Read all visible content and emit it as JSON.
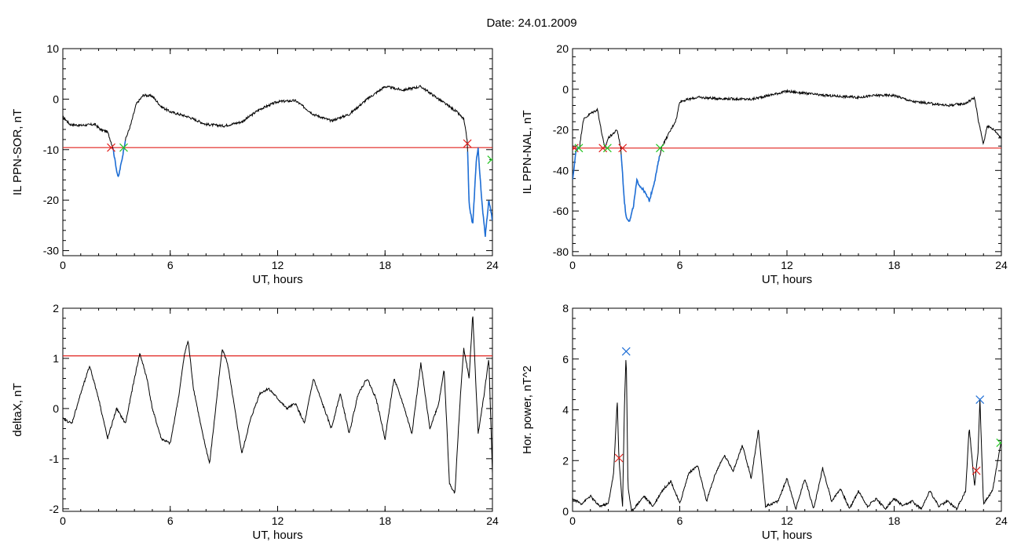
{
  "header": {
    "date_label": "Date:  24.01.2009"
  },
  "colors": {
    "trace": "#000000",
    "threshold": "#e0201c",
    "highlight": "#1f6fd6",
    "start_marker": "#e0201c",
    "end_marker": "#22c522",
    "peak_marker": "#1f6fd6"
  },
  "chart_data": [
    {
      "type": "line",
      "id": "top-left",
      "xlabel": "UT, hours",
      "ylabel": "IL PPN-SOR, nT",
      "xlim": [
        0,
        24
      ],
      "ylim": [
        -31,
        10
      ],
      "xticks": [
        0,
        6,
        12,
        18,
        24
      ],
      "yticks": [
        -30,
        -20,
        -10,
        0,
        10
      ],
      "threshold": -9.6,
      "series": [
        {
          "points": [
            [
              0,
              -3.5
            ],
            [
              0.4,
              -5
            ],
            [
              1,
              -5.2
            ],
            [
              1.8,
              -5
            ],
            [
              2.1,
              -6
            ],
            [
              2.5,
              -6.5
            ],
            [
              2.8,
              -9.6
            ],
            [
              3.0,
              -14
            ],
            [
              3.1,
              -15.6
            ],
            [
              3.3,
              -12
            ],
            [
              3.5,
              -8
            ],
            [
              3.8,
              -5
            ],
            [
              4.1,
              -1
            ],
            [
              4.5,
              0.8
            ],
            [
              5,
              0.6
            ],
            [
              5.5,
              -1.5
            ],
            [
              6,
              -2.5
            ],
            [
              7,
              -3.5
            ],
            [
              8,
              -5
            ],
            [
              9,
              -5.3
            ],
            [
              10,
              -4.5
            ],
            [
              11,
              -2
            ],
            [
              12,
              -0.5
            ],
            [
              13,
              -0.3
            ],
            [
              14,
              -3
            ],
            [
              15,
              -4.3
            ],
            [
              16,
              -3
            ],
            [
              17,
              0
            ],
            [
              18,
              2.5
            ],
            [
              19,
              1.8
            ],
            [
              20,
              2.5
            ],
            [
              21,
              0
            ],
            [
              22,
              -2.5
            ],
            [
              22.4,
              -4
            ],
            [
              22.6,
              -8.5
            ],
            [
              22.7,
              -21
            ],
            [
              22.9,
              -25
            ],
            [
              23.1,
              -12
            ],
            [
              23.2,
              -9.8
            ],
            [
              23.4,
              -20
            ],
            [
              23.6,
              -27
            ],
            [
              23.8,
              -20
            ],
            [
              24,
              -24
            ]
          ]
        }
      ],
      "highlight_segments": [
        [
          2.8,
          3.5
        ],
        [
          22.6,
          24
        ]
      ],
      "start_markers": [
        [
          2.7,
          -9.6
        ],
        [
          22.6,
          -8.8
        ]
      ],
      "end_markers": [
        [
          3.4,
          -9.6
        ],
        [
          23.95,
          -12
        ]
      ]
    },
    {
      "type": "line",
      "id": "top-right",
      "xlabel": "UT, hours",
      "ylabel": "IL PPN-NAL, nT",
      "xlim": [
        0,
        24
      ],
      "ylim": [
        -82,
        20
      ],
      "xticks": [
        0,
        6,
        12,
        18,
        24
      ],
      "yticks": [
        -80,
        -60,
        -40,
        -20,
        0,
        20
      ],
      "threshold": -29,
      "series": [
        {
          "points": [
            [
              0,
              -45
            ],
            [
              0.2,
              -30
            ],
            [
              0.4,
              -28
            ],
            [
              0.6,
              -15
            ],
            [
              1,
              -12
            ],
            [
              1.4,
              -10
            ],
            [
              1.6,
              -20
            ],
            [
              1.8,
              -29
            ],
            [
              2,
              -24
            ],
            [
              2.5,
              -20
            ],
            [
              2.7,
              -29
            ],
            [
              2.9,
              -55
            ],
            [
              3,
              -63
            ],
            [
              3.2,
              -65
            ],
            [
              3.4,
              -58
            ],
            [
              3.6,
              -45
            ],
            [
              3.8,
              -48
            ],
            [
              4,
              -50
            ],
            [
              4.3,
              -55
            ],
            [
              4.6,
              -45
            ],
            [
              4.8,
              -36
            ],
            [
              5,
              -28
            ],
            [
              5.2,
              -25
            ],
            [
              5.5,
              -20
            ],
            [
              5.8,
              -15
            ],
            [
              6,
              -6
            ],
            [
              7,
              -4
            ],
            [
              8,
              -4.5
            ],
            [
              10,
              -5
            ],
            [
              11,
              -3
            ],
            [
              12,
              -1
            ],
            [
              13,
              -2
            ],
            [
              14,
              -3
            ],
            [
              16,
              -4
            ],
            [
              17,
              -3
            ],
            [
              18,
              -3
            ],
            [
              19,
              -6
            ],
            [
              20,
              -7
            ],
            [
              21,
              -8
            ],
            [
              22,
              -7
            ],
            [
              22.5,
              -4
            ],
            [
              22.7,
              -15
            ],
            [
              23,
              -27
            ],
            [
              23.2,
              -18
            ],
            [
              23.6,
              -20
            ],
            [
              24,
              -24
            ]
          ]
        }
      ],
      "highlight_segments": [
        [
          0,
          0.4
        ],
        [
          1.8,
          1.9
        ],
        [
          2.7,
          4.9
        ]
      ],
      "start_markers": [
        [
          0.1,
          -29
        ],
        [
          1.7,
          -29
        ],
        [
          2.8,
          -29
        ]
      ],
      "end_markers": [
        [
          0.35,
          -29
        ],
        [
          1.95,
          -29
        ],
        [
          4.9,
          -29
        ]
      ]
    },
    {
      "type": "line",
      "id": "bottom-left",
      "xlabel": "UT, hours",
      "ylabel": "deltaX, nT",
      "xlim": [
        0,
        24
      ],
      "ylim": [
        -2.05,
        2
      ],
      "xticks": [
        0,
        6,
        12,
        18,
        24
      ],
      "yticks": [
        -2,
        -1,
        0,
        1,
        2
      ],
      "threshold": 1.05,
      "series": [
        {
          "points": [
            [
              0,
              -0.2
            ],
            [
              0.5,
              -0.3
            ],
            [
              1,
              0.3
            ],
            [
              1.5,
              0.85
            ],
            [
              2,
              0.2
            ],
            [
              2.5,
              -0.6
            ],
            [
              3,
              0
            ],
            [
              3.5,
              -0.3
            ],
            [
              4,
              0.6
            ],
            [
              4.3,
              1.1
            ],
            [
              4.7,
              0.6
            ],
            [
              5,
              0
            ],
            [
              5.5,
              -0.6
            ],
            [
              6,
              -0.7
            ],
            [
              6.5,
              0.3
            ],
            [
              6.8,
              1.1
            ],
            [
              7,
              1.35
            ],
            [
              7.3,
              0.4
            ],
            [
              7.8,
              -0.5
            ],
            [
              8.2,
              -1.1
            ],
            [
              8.6,
              0.2
            ],
            [
              8.9,
              1.2
            ],
            [
              9.2,
              0.9
            ],
            [
              9.6,
              0
            ],
            [
              10,
              -0.9
            ],
            [
              10.5,
              -0.2
            ],
            [
              11,
              0.3
            ],
            [
              11.5,
              0.4
            ],
            [
              12,
              0.2
            ],
            [
              12.5,
              0
            ],
            [
              13,
              0.1
            ],
            [
              13.5,
              -0.3
            ],
            [
              14,
              0.6
            ],
            [
              14.5,
              0.1
            ],
            [
              15,
              -0.4
            ],
            [
              15.5,
              0.3
            ],
            [
              16,
              -0.5
            ],
            [
              16.5,
              0.3
            ],
            [
              17,
              0.6
            ],
            [
              17.5,
              0.2
            ],
            [
              18,
              -0.6
            ],
            [
              18.5,
              0.6
            ],
            [
              19,
              0.1
            ],
            [
              19.5,
              -0.5
            ],
            [
              20,
              0.9
            ],
            [
              20.5,
              -0.4
            ],
            [
              21,
              0.1
            ],
            [
              21.3,
              0.8
            ],
            [
              21.6,
              -1.5
            ],
            [
              21.9,
              -1.7
            ],
            [
              22.2,
              0.2
            ],
            [
              22.4,
              1.2
            ],
            [
              22.7,
              0.6
            ],
            [
              22.9,
              1.9
            ],
            [
              23.2,
              -0.5
            ],
            [
              23.5,
              0.2
            ],
            [
              23.8,
              1
            ],
            [
              24,
              -1.3
            ]
          ]
        }
      ]
    },
    {
      "type": "line",
      "id": "bottom-right",
      "xlabel": "UT, hours",
      "ylabel": "Hor. power, nT^2",
      "xlim": [
        0,
        24
      ],
      "ylim": [
        0,
        8
      ],
      "xticks": [
        0,
        6,
        12,
        18,
        24
      ],
      "yticks": [
        0,
        2,
        4,
        6,
        8
      ],
      "series": [
        {
          "points": [
            [
              0,
              0.5
            ],
            [
              0.5,
              0.3
            ],
            [
              1,
              0.6
            ],
            [
              1.5,
              0.2
            ],
            [
              2,
              0.3
            ],
            [
              2.3,
              1.5
            ],
            [
              2.5,
              4.4
            ],
            [
              2.6,
              2
            ],
            [
              2.8,
              0.2
            ],
            [
              2.9,
              4
            ],
            [
              3,
              6.3
            ],
            [
              3.1,
              1
            ],
            [
              3.3,
              0
            ],
            [
              4,
              0.6
            ],
            [
              4.5,
              0.2
            ],
            [
              5,
              0.8
            ],
            [
              5.5,
              1.2
            ],
            [
              6,
              0.3
            ],
            [
              6.5,
              1.5
            ],
            [
              7,
              1.8
            ],
            [
              7.5,
              0.4
            ],
            [
              8,
              1.5
            ],
            [
              8.5,
              2.2
            ],
            [
              9,
              1.6
            ],
            [
              9.5,
              2.6
            ],
            [
              10,
              1.3
            ],
            [
              10.4,
              3.2
            ],
            [
              10.8,
              0.2
            ],
            [
              11.5,
              0.4
            ],
            [
              12,
              1.3
            ],
            [
              12.5,
              0.1
            ],
            [
              13,
              1.3
            ],
            [
              13.5,
              0.1
            ],
            [
              14,
              1.7
            ],
            [
              14.5,
              0.4
            ],
            [
              15,
              0.9
            ],
            [
              15.5,
              0.1
            ],
            [
              16,
              0.8
            ],
            [
              16.5,
              0.2
            ],
            [
              17,
              0.5
            ],
            [
              17.5,
              0.1
            ],
            [
              18,
              0.5
            ],
            [
              18.5,
              0.2
            ],
            [
              19,
              0.4
            ],
            [
              19.5,
              0.1
            ],
            [
              20,
              0.8
            ],
            [
              20.5,
              0.2
            ],
            [
              21,
              0.4
            ],
            [
              21.5,
              0.1
            ],
            [
              22,
              0.8
            ],
            [
              22.2,
              3.3
            ],
            [
              22.5,
              1
            ],
            [
              22.7,
              2.4
            ],
            [
              22.8,
              4.4
            ],
            [
              23,
              0.3
            ],
            [
              23.5,
              0.8
            ],
            [
              24,
              2.8
            ]
          ]
        }
      ],
      "peak_markers": [
        [
          3.0,
          6.3
        ],
        [
          22.8,
          4.4
        ]
      ],
      "start_markers": [
        [
          2.6,
          2.1
        ],
        [
          22.6,
          1.6
        ]
      ],
      "end_markers": [
        [
          23.95,
          2.7
        ]
      ]
    }
  ]
}
